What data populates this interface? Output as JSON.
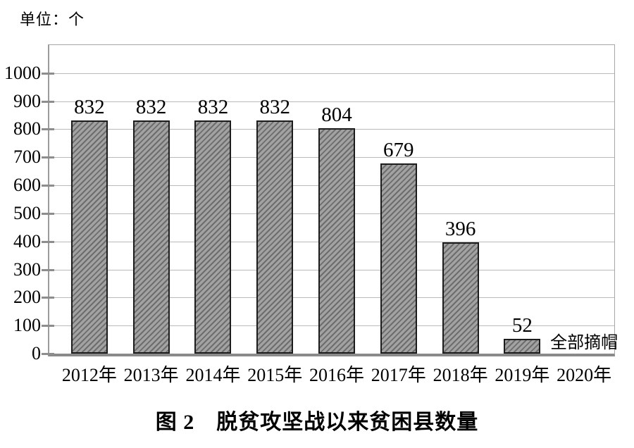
{
  "unit_label": "单位：个",
  "caption": "图 2　脱贫攻坚战以来贫困县数量",
  "chart_data": {
    "type": "bar",
    "title": "图 2　脱贫攻坚战以来贫困县数量",
    "unit": "单位：个",
    "categories": [
      "2012年",
      "2013年",
      "2014年",
      "2015年",
      "2016年",
      "2017年",
      "2018年",
      "2019年",
      "2020年"
    ],
    "values": [
      832,
      832,
      832,
      832,
      804,
      679,
      396,
      52,
      null
    ],
    "bar_labels": [
      "832",
      "832",
      "832",
      "832",
      "804",
      "679",
      "396",
      "52",
      ""
    ],
    "annotation": {
      "index": 8,
      "text": "全部摘帽"
    },
    "xlabel": "",
    "ylabel": "",
    "ylim": [
      0,
      1100
    ],
    "yticks": [
      0,
      100,
      200,
      300,
      400,
      500,
      600,
      700,
      800,
      900,
      1000
    ],
    "grid": true,
    "legend": "none",
    "bar_fill_color": "#a2a2a2",
    "bar_hatch_color": "#6d6d6d",
    "bar_border_color": "#1c1c1c",
    "gridline_color": "#b9b9b9",
    "axis_color": "#8a8a8a"
  }
}
